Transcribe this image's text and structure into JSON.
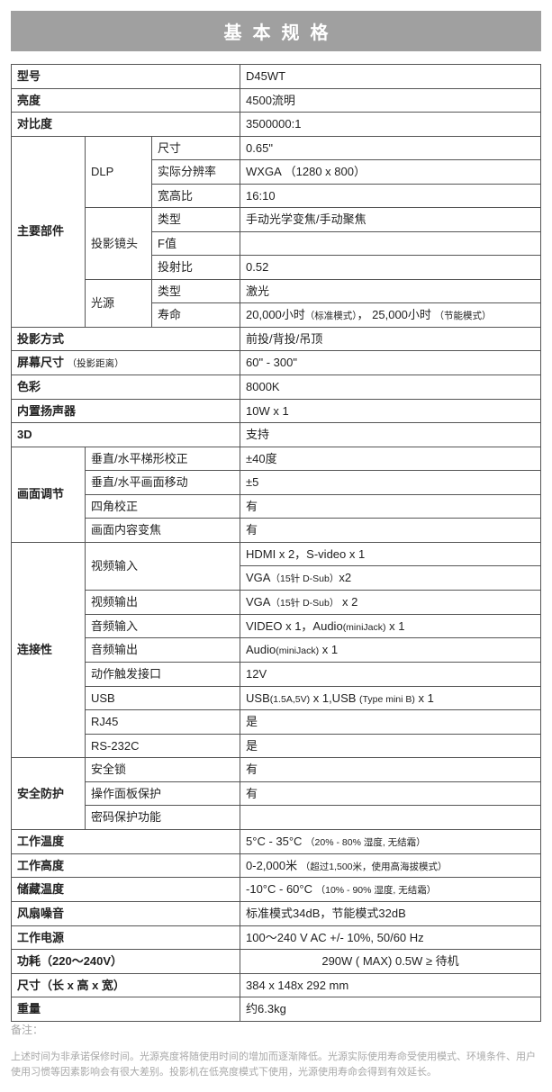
{
  "title": "基本规格",
  "labels": {
    "model": "型号",
    "brightness": "亮度",
    "contrast": "对比度",
    "mainParts": "主要部件",
    "dlp": "DLP",
    "size": "尺寸",
    "nativeRes": "实际分辨率",
    "aspect": "宽高比",
    "projectionLens": "投影镜头",
    "type": "类型",
    "fValue": "F值",
    "throwRatio": "投射比",
    "lightSource": "光源",
    "life": "寿命",
    "projMethod": "投影方式",
    "screenSize": "屏幕尺寸",
    "screenSizeNote": "（投影距离）",
    "color": "色彩",
    "speaker": "内置扬声器",
    "threeD": "3D",
    "imageAdjust": "画面调节",
    "keystone": "垂直/水平梯形校正",
    "shift": "垂直/水平画面移动",
    "cornerFit": "四角校正",
    "contentZoom": "画面内容变焦",
    "connectivity": "连接性",
    "videoIn": "视频输入",
    "videoOut": "视频输出",
    "audioIn": "音频输入",
    "audioOut": "音频输出",
    "trigger": "动作触发接口",
    "usb": "USB",
    "rj45": "RJ45",
    "rs232": "RS-232C",
    "security": "安全防护",
    "securityLock": "安全锁",
    "panelLock": "操作面板保护",
    "pwdProtect": "密码保护功能",
    "workTemp": "工作温度",
    "workAlt": "工作高度",
    "storeTemp": "储藏温度",
    "fanNoise": "风扇噪音",
    "power": "工作电源",
    "consumption": "功耗（220～240V）",
    "dimensions": "尺寸（长 x 高 x 宽）",
    "weight": "重量"
  },
  "values": {
    "model": "D45WT",
    "brightness": "4500流明",
    "contrast": "3500000:1",
    "dlpSize": "0.65\"",
    "dlpRes": "WXGA （1280 x 800）",
    "dlpAspect": "16:10",
    "lensType": "手动光学变焦/手动聚焦",
    "lensF": "",
    "lensThrow": "0.52",
    "lightType": "激光",
    "lightLife1": "20,000小时",
    "lightLife1Note": "（标准模式）",
    "lightLife2": "，  25,000小时 ",
    "lightLife2Note": "（节能模式）",
    "projMethod": "前投/背投/吊顶",
    "screenSize": "60\" - 300\"",
    "color": "8000K",
    "speaker": "10W x 1",
    "threeD": "支持",
    "keystone": "±40度",
    "shift": " ±5",
    "cornerFit": "有",
    "contentZoom": "有",
    "videoIn1": "HDMI x 2，S-video x 1",
    "videoIn2a": "VGA",
    "videoIn2b": "（15针 D-Sub）",
    "videoIn2c": "x2",
    "videoOutA": "VGA",
    "videoOutB": "（15针 D-Sub）",
    "videoOutC": " x 2",
    "audioInA": "VIDEO x 1，Audio",
    "audioInB": "(miniJack)",
    "audioInC": " x 1",
    "audioOutA": "Audio",
    "audioOutB": "(miniJack)",
    "audioOutC": " x 1",
    "trigger": "12V",
    "usbA": "USB",
    "usbB": "(1.5A,5V)",
    "usbC": " x 1,USB ",
    "usbD": "(Type mini B)",
    "usbE": " x 1",
    "rj45": "是",
    "rs232": "是",
    "secLock": "有",
    "panelLock": "有",
    "pwdProtect": "",
    "workTempA": "5°C - 35°C   ",
    "workTempB": "（20% - 80% 湿度, 无结霜）",
    "workAltA": "0-2,000米  ",
    "workAltB": "（超过1,500米，使用高海拔模式）",
    "storeTempA": "-10°C - 60°C ",
    "storeTempB": "（10% - 90% 湿度, 无结霜）",
    "fanNoise": "标准模式34dB，节能模式32dB",
    "power": "100～240 V AC  +/- 10%, 50/60 Hz",
    "consumption": "290W ( MAX)    0.5W ≥ 待机",
    "dimensions": "384 x 148x 292 mm",
    "weight": "约6.3kg"
  },
  "footnote": {
    "title": "备注：",
    "body": "上述时间为非承诺保修时间。光源亮度将随使用时间的增加而逐渐降低。光源实际使用寿命受使用模式、环境条件、用户使用习惯等因素影响会有很大差别。投影机在低亮度模式下使用，光源使用寿命会得到有效延长。"
  },
  "colors": {
    "titleBg": "#a0a0a0",
    "titleFg": "#ffffff",
    "border": "#555555",
    "footnote": "#a8a8a8"
  }
}
